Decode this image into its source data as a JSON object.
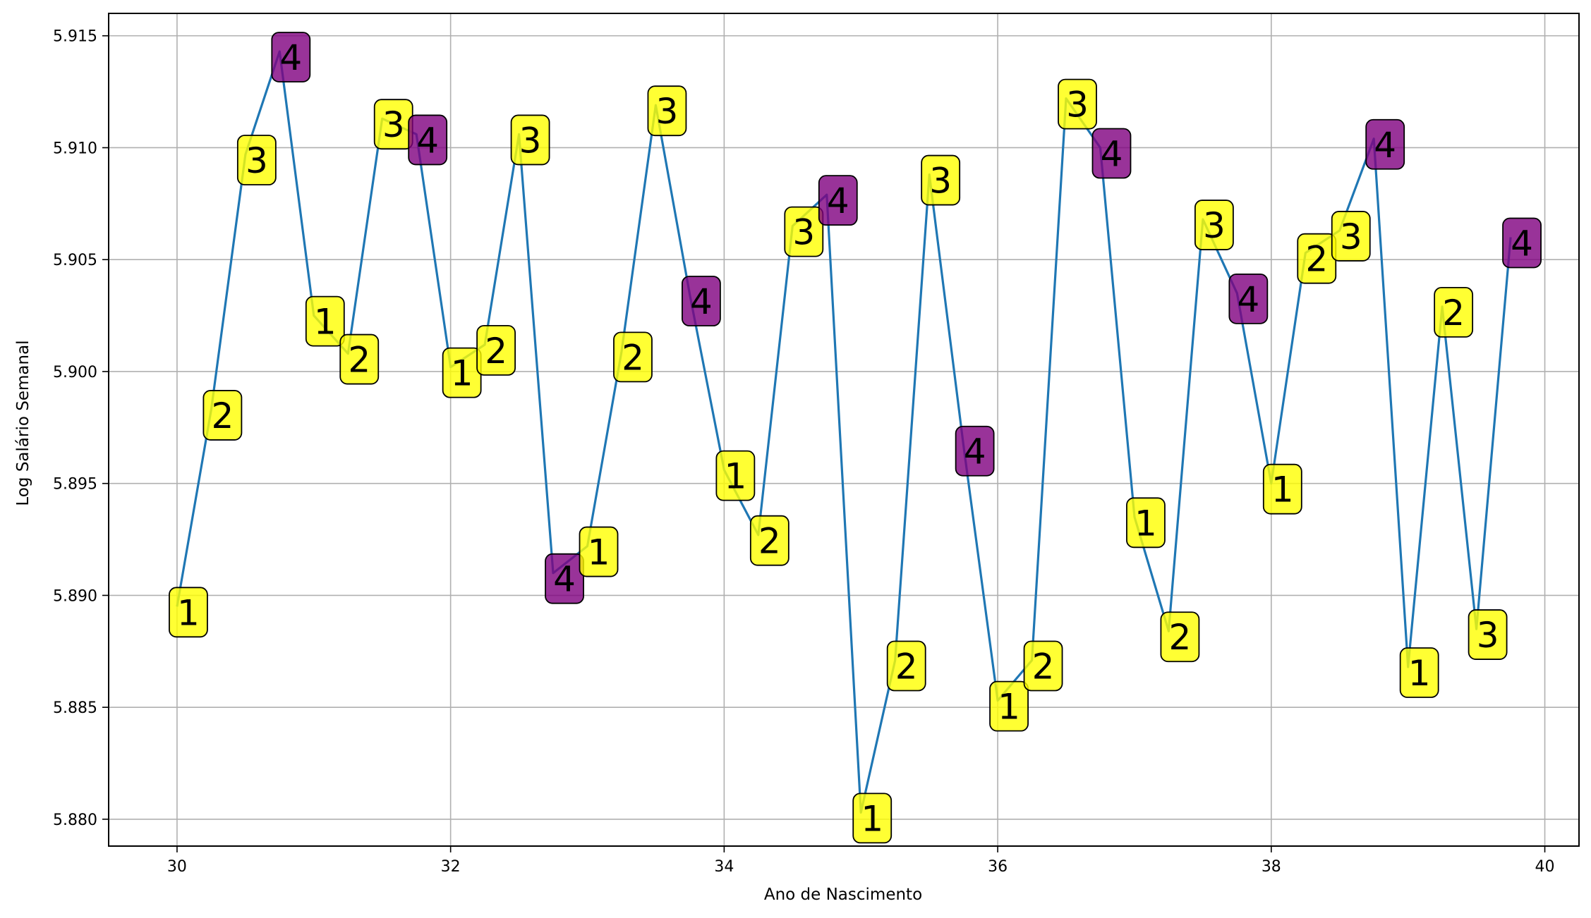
{
  "chart_data": {
    "type": "line",
    "xlabel": "Ano de Nascimento",
    "ylabel": "Log Salário Semanal",
    "xlim": [
      29.5,
      40.25
    ],
    "ylim": [
      5.8788,
      5.916
    ],
    "x_ticks": [
      30,
      32,
      34,
      36,
      38,
      40
    ],
    "y_ticks": [
      5.88,
      5.885,
      5.89,
      5.895,
      5.9,
      5.905,
      5.91,
      5.915
    ],
    "x_tick_labels": [
      "30",
      "32",
      "34",
      "36",
      "38",
      "40"
    ],
    "y_tick_labels": [
      "5.880",
      "5.885",
      "5.890",
      "5.895",
      "5.900",
      "5.905",
      "5.910",
      "5.915"
    ],
    "grid": true,
    "line_color": "#1f77b4",
    "label_colors": {
      "q4": "#800080",
      "other": "#ffff00"
    },
    "series": [
      {
        "points": [
          {
            "x": 30.0,
            "y": 5.8895,
            "q": "1"
          },
          {
            "x": 30.25,
            "y": 5.8983,
            "q": "2"
          },
          {
            "x": 30.5,
            "y": 5.9097,
            "q": "3"
          },
          {
            "x": 30.75,
            "y": 5.9143,
            "q": "4"
          },
          {
            "x": 31.0,
            "y": 5.9025,
            "q": "1"
          },
          {
            "x": 31.25,
            "y": 5.9008,
            "q": "2"
          },
          {
            "x": 31.5,
            "y": 5.9113,
            "q": "3"
          },
          {
            "x": 31.75,
            "y": 5.9106,
            "q": "4"
          },
          {
            "x": 32.0,
            "y": 5.9002,
            "q": "1"
          },
          {
            "x": 32.25,
            "y": 5.9012,
            "q": "2"
          },
          {
            "x": 32.5,
            "y": 5.9106,
            "q": "3"
          },
          {
            "x": 32.75,
            "y": 5.891,
            "q": "4"
          },
          {
            "x": 33.0,
            "y": 5.8922,
            "q": "1"
          },
          {
            "x": 33.25,
            "y": 5.9009,
            "q": "2"
          },
          {
            "x": 33.5,
            "y": 5.9119,
            "q": "3"
          },
          {
            "x": 33.75,
            "y": 5.9034,
            "q": "4"
          },
          {
            "x": 34.0,
            "y": 5.8956,
            "q": "1"
          },
          {
            "x": 34.25,
            "y": 5.8927,
            "q": "2"
          },
          {
            "x": 34.5,
            "y": 5.9065,
            "q": "3"
          },
          {
            "x": 34.75,
            "y": 5.9079,
            "q": "4"
          },
          {
            "x": 35.0,
            "y": 5.8803,
            "q": "1"
          },
          {
            "x": 35.25,
            "y": 5.8871,
            "q": "2"
          },
          {
            "x": 35.5,
            "y": 5.9088,
            "q": "3"
          },
          {
            "x": 35.75,
            "y": 5.8967,
            "q": "4"
          },
          {
            "x": 36.0,
            "y": 5.8853,
            "q": "1"
          },
          {
            "x": 36.25,
            "y": 5.8871,
            "q": "2"
          },
          {
            "x": 36.5,
            "y": 5.9122,
            "q": "3"
          },
          {
            "x": 36.75,
            "y": 5.91,
            "q": "4"
          },
          {
            "x": 37.0,
            "y": 5.8935,
            "q": "1"
          },
          {
            "x": 37.25,
            "y": 5.8884,
            "q": "2"
          },
          {
            "x": 37.5,
            "y": 5.9068,
            "q": "3"
          },
          {
            "x": 37.75,
            "y": 5.9035,
            "q": "4"
          },
          {
            "x": 38.0,
            "y": 5.895,
            "q": "1"
          },
          {
            "x": 38.25,
            "y": 5.9053,
            "q": "2"
          },
          {
            "x": 38.5,
            "y": 5.9063,
            "q": "3"
          },
          {
            "x": 38.75,
            "y": 5.9104,
            "q": "4"
          },
          {
            "x": 39.0,
            "y": 5.8868,
            "q": "1"
          },
          {
            "x": 39.25,
            "y": 5.9029,
            "q": "2"
          },
          {
            "x": 39.5,
            "y": 5.8885,
            "q": "3"
          },
          {
            "x": 39.75,
            "y": 5.906,
            "q": "4"
          }
        ]
      }
    ]
  }
}
